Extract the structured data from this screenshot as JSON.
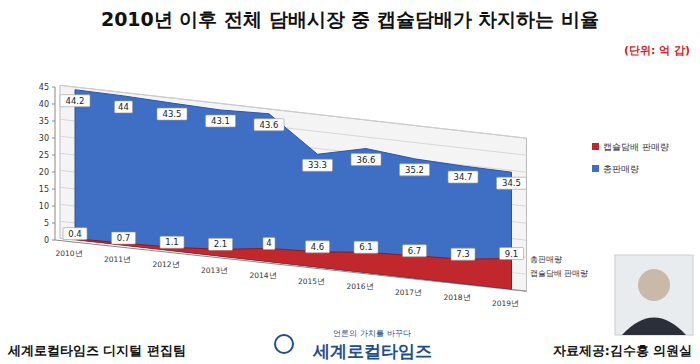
{
  "chart_data": {
    "type": "area",
    "title": "2010년 이후 전체 담배시장 중 캡슐담배가 차지하는 비율",
    "subtitle": "(단위: 억 갑)",
    "categories": [
      "2010년",
      "2011년",
      "2012년",
      "2013년",
      "2014년",
      "2015년",
      "2016년",
      "2017년",
      "2018년",
      "2019년"
    ],
    "series": [
      {
        "name": "총판매량",
        "color": "#3f6fc4",
        "values": [
          44.2,
          44,
          43.5,
          43.1,
          43.6,
          33.3,
          36.6,
          35.2,
          34.7,
          34.5
        ]
      },
      {
        "name": "캡슐담배 판매량",
        "color": "#c0282d",
        "values": [
          0.4,
          0.7,
          1.1,
          2.1,
          4,
          4.6,
          6.1,
          6.7,
          7.3,
          9.1
        ]
      }
    ],
    "ylim": [
      0,
      45
    ],
    "yticks": [
      0,
      5,
      10,
      15,
      20,
      25,
      30,
      35,
      40,
      45
    ],
    "grid": true,
    "legend": "right",
    "data_labels": true,
    "annotations": [
      "총판매량",
      "캡슐담배 판매량"
    ],
    "footer": {
      "left": "세계로컬타임즈 디지털 편집팀",
      "slogan": "언론의 가치를 바꾸다",
      "brand": "세계로컬타임즈",
      "source": "자료제공:김수홍 의원실"
    }
  }
}
